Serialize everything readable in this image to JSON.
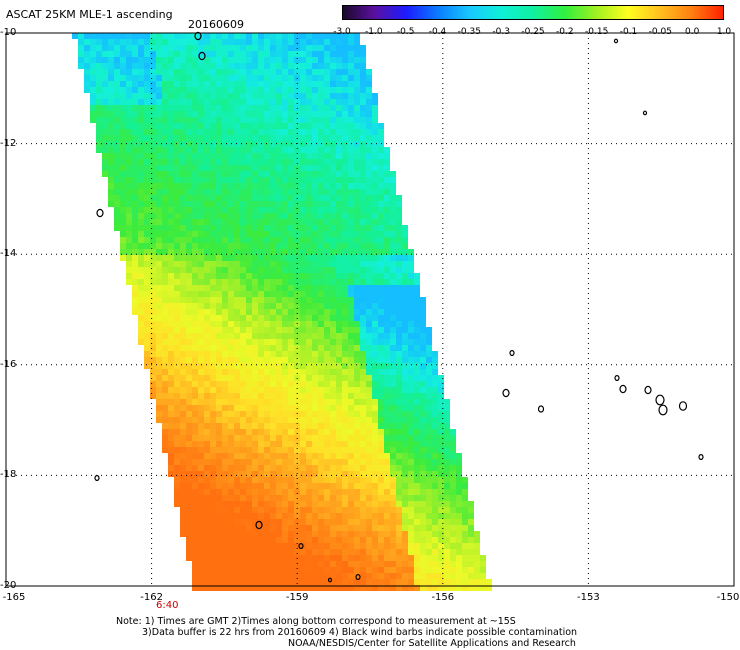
{
  "title": "ASCAT 25KM MLE-1 ascending",
  "date": "20160609",
  "colorbar": {
    "labels": [
      "-3.0",
      "-1.0",
      "-0.5",
      "-0.4",
      "-0.35",
      "-0.3",
      "-0.25",
      "-0.2",
      "-0.15",
      "-0.1",
      "-0.05",
      "0.0",
      "1.0"
    ],
    "colors": [
      "#1a0a2a",
      "#5a10a0",
      "#1c1cff",
      "#0a7cff",
      "#19c8ff",
      "#10f0d8",
      "#10f0a0",
      "#30f040",
      "#a0f020",
      "#ffff20",
      "#ffc020",
      "#ff8010",
      "#ff2000"
    ]
  },
  "axes": {
    "lat_labels": [
      "-10",
      "-12",
      "-14",
      "-16",
      "-18",
      "-20"
    ],
    "lon_labels": [
      "-165",
      "-162",
      "-159",
      "-156",
      "-153",
      "-150"
    ],
    "lat_range": [
      -20,
      -10
    ],
    "lon_range": [
      -165,
      -150
    ]
  },
  "time_label": "6:40",
  "notes": {
    "line1": "Note: 1) Times are GMT 2)Times along bottom correspond to measurement at ~15S",
    "line2": "3)Data buffer is 22 hrs from 20160609 4) Black wind barbs indicate possible contamination",
    "line3": "NOAA/NESDIS/Center for Satellite Applications and Research"
  }
}
